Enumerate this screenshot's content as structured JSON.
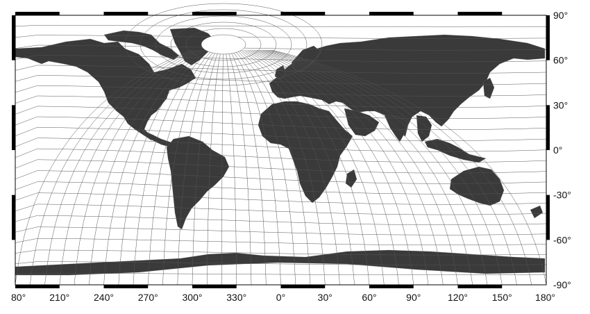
{
  "map": {
    "projection": "Equirectangular world grid with rotated (distorted) graticule overlay",
    "colors": {
      "land": "#3a3a3a",
      "ocean": "#ffffff",
      "grid": "#555555",
      "frame": "#000000"
    },
    "x_labels": [
      "80°",
      "210°",
      "240°",
      "270°",
      "300°",
      "330°",
      "0°",
      "30°",
      "60°",
      "90°",
      "120°",
      "150°",
      "180°"
    ],
    "y_labels": [
      "90°",
      "60°",
      "30°",
      "0°",
      "-30°",
      "-60°",
      "-90°"
    ],
    "features": [
      {
        "name": "north-america"
      },
      {
        "name": "greenland"
      },
      {
        "name": "south-america"
      },
      {
        "name": "europe-asia"
      },
      {
        "name": "africa"
      },
      {
        "name": "arabia"
      },
      {
        "name": "india"
      },
      {
        "name": "australia"
      },
      {
        "name": "antarctica"
      },
      {
        "name": "polar-cap-hole"
      }
    ]
  }
}
